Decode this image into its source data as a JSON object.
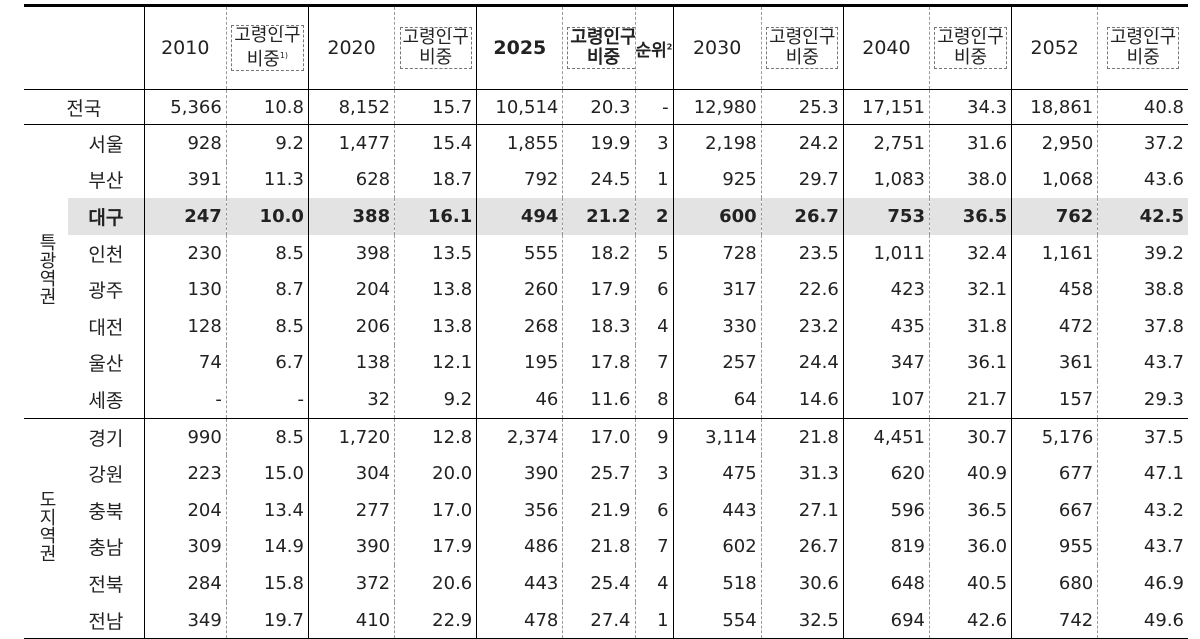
{
  "header": {
    "y2010": "2010",
    "share_1": [
      "고령인구",
      "비중"
    ],
    "share_1_note": "1)",
    "y2020": "2020",
    "share_2": [
      "고령인구",
      "비중"
    ],
    "y2025": "2025",
    "share_3": [
      "고령인구",
      "비중"
    ],
    "rank": "순위",
    "rank_note": "2)",
    "y2030": "2030",
    "share_4": [
      "고령인구",
      "비중"
    ],
    "y2040": "2040",
    "share_5": [
      "고령인구",
      "비중"
    ],
    "y2052": "2052",
    "share_6": [
      "고령인구",
      "비중"
    ]
  },
  "nation": {
    "label": "전국",
    "values": [
      "5,366",
      "10.8",
      "8,152",
      "15.7",
      "10,514",
      "20.3",
      "-",
      "12,980",
      "25.3",
      "17,151",
      "34.3",
      "18,861",
      "40.8"
    ]
  },
  "groups": [
    {
      "label": "특광역권",
      "rows": [
        {
          "region": "서울",
          "values": [
            "928",
            "9.2",
            "1,477",
            "15.4",
            "1,855",
            "19.9",
            "3",
            "2,198",
            "24.2",
            "2,751",
            "31.6",
            "2,950",
            "37.2"
          ]
        },
        {
          "region": "부산",
          "values": [
            "391",
            "11.3",
            "628",
            "18.7",
            "792",
            "24.5",
            "1",
            "925",
            "29.7",
            "1,083",
            "38.0",
            "1,068",
            "43.6"
          ]
        },
        {
          "region": "대구",
          "values": [
            "247",
            "10.0",
            "388",
            "16.1",
            "494",
            "21.2",
            "2",
            "600",
            "26.7",
            "753",
            "36.5",
            "762",
            "42.5"
          ]
        },
        {
          "region": "인천",
          "values": [
            "230",
            "8.5",
            "398",
            "13.5",
            "555",
            "18.2",
            "5",
            "728",
            "23.5",
            "1,011",
            "32.4",
            "1,161",
            "39.2"
          ]
        },
        {
          "region": "광주",
          "values": [
            "130",
            "8.7",
            "204",
            "13.8",
            "260",
            "17.9",
            "6",
            "317",
            "22.6",
            "423",
            "32.1",
            "458",
            "38.8"
          ]
        },
        {
          "region": "대전",
          "values": [
            "128",
            "8.5",
            "206",
            "13.8",
            "268",
            "18.3",
            "4",
            "330",
            "23.2",
            "435",
            "31.8",
            "472",
            "37.8"
          ]
        },
        {
          "region": "울산",
          "values": [
            "74",
            "6.7",
            "138",
            "12.1",
            "195",
            "17.8",
            "7",
            "257",
            "24.4",
            "347",
            "36.1",
            "361",
            "43.7"
          ]
        },
        {
          "region": "세종",
          "values": [
            "-",
            "-",
            "32",
            "9.2",
            "46",
            "11.6",
            "8",
            "64",
            "14.6",
            "107",
            "21.7",
            "157",
            "29.3"
          ]
        }
      ]
    },
    {
      "label": "도지역권",
      "rows": [
        {
          "region": "경기",
          "values": [
            "990",
            "8.5",
            "1,720",
            "12.8",
            "2,374",
            "17.0",
            "9",
            "3,114",
            "21.8",
            "4,451",
            "30.7",
            "5,176",
            "37.5"
          ]
        },
        {
          "region": "강원",
          "values": [
            "223",
            "15.0",
            "304",
            "20.0",
            "390",
            "25.7",
            "3",
            "475",
            "31.3",
            "620",
            "40.9",
            "677",
            "47.1"
          ]
        },
        {
          "region": "충북",
          "values": [
            "204",
            "13.4",
            "277",
            "17.0",
            "356",
            "21.9",
            "6",
            "443",
            "27.1",
            "596",
            "36.5",
            "667",
            "43.2"
          ]
        },
        {
          "region": "충남",
          "values": [
            "309",
            "14.9",
            "390",
            "17.9",
            "486",
            "21.8",
            "7",
            "602",
            "26.7",
            "819",
            "36.0",
            "955",
            "43.7"
          ]
        },
        {
          "region": "전북",
          "values": [
            "284",
            "15.8",
            "372",
            "20.6",
            "443",
            "25.4",
            "4",
            "518",
            "30.6",
            "648",
            "40.5",
            "680",
            "46.9"
          ]
        },
        {
          "region": "전남",
          "values": [
            "349",
            "19.7",
            "410",
            "22.9",
            "478",
            "27.4",
            "1",
            "554",
            "32.5",
            "694",
            "42.6",
            "742",
            "49.6"
          ]
        }
      ]
    }
  ]
}
